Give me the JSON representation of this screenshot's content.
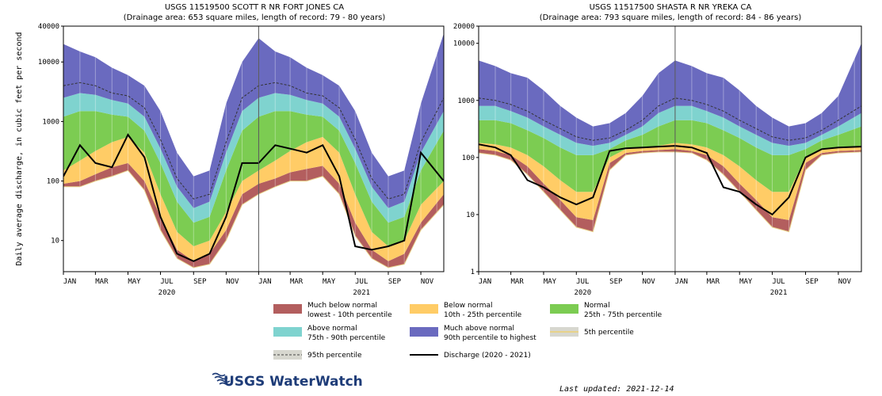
{
  "y_axis_label": "Daily average discharge, in cubic feet per second",
  "chart_data": [
    {
      "type": "area",
      "title": "USGS 11519500 SCOTT R NR FORT JONES CA",
      "subtitle": "(Drainage area: 653 square miles, length of record: 79 - 80 years)",
      "yscale": "log",
      "ylim": [
        3,
        40000
      ],
      "yticks": [
        10,
        100,
        1000,
        10000,
        40000
      ],
      "xlim": [
        "2020-01-01",
        "2021-12-14"
      ],
      "xticks": [
        "JAN",
        "MAR",
        "MAY",
        "JUL",
        "SEP",
        "NOV",
        "JAN",
        "MAR",
        "MAY",
        "JUL",
        "SEP",
        "NOV"
      ],
      "year_labels": [
        "2020",
        "2021"
      ],
      "x": [
        "2020-01-01",
        "2020-02-01",
        "2020-03-01",
        "2020-04-01",
        "2020-05-01",
        "2020-06-01",
        "2020-07-01",
        "2020-08-01",
        "2020-09-01",
        "2020-10-01",
        "2020-11-01",
        "2020-12-01",
        "2021-01-01",
        "2021-02-01",
        "2021-03-01",
        "2021-04-01",
        "2021-05-01",
        "2021-06-01",
        "2021-07-01",
        "2021-08-01",
        "2021-09-01",
        "2021-10-01",
        "2021-11-01",
        "2021-12-14"
      ],
      "bands": {
        "p05": [
          80,
          80,
          100,
          120,
          150,
          70,
          15,
          5,
          3.5,
          4,
          10,
          40,
          60,
          80,
          100,
          100,
          120,
          60,
          12,
          5,
          3.5,
          4,
          15,
          40
        ],
        "p10": [
          90,
          100,
          130,
          170,
          200,
          100,
          25,
          7,
          4.5,
          6,
          15,
          60,
          90,
          110,
          140,
          160,
          180,
          90,
          20,
          7,
          4.5,
          6,
          20,
          60
        ],
        "p25": [
          150,
          220,
          320,
          450,
          550,
          300,
          60,
          14,
          8,
          10,
          30,
          100,
          150,
          220,
          320,
          450,
          550,
          300,
          60,
          14,
          8,
          10,
          40,
          100
        ],
        "p75": [
          1200,
          1500,
          1500,
          1300,
          1200,
          700,
          200,
          45,
          20,
          25,
          150,
          700,
          1200,
          1500,
          1500,
          1300,
          1200,
          700,
          200,
          45,
          20,
          25,
          150,
          700
        ],
        "p90": [
          2500,
          3000,
          2800,
          2300,
          2000,
          1200,
          350,
          80,
          35,
          45,
          300,
          1500,
          2500,
          3000,
          2800,
          2300,
          2000,
          1200,
          350,
          80,
          35,
          45,
          300,
          1500
        ],
        "p95": [
          4000,
          4500,
          4000,
          3000,
          2700,
          1700,
          500,
          110,
          50,
          60,
          450,
          2500,
          4000,
          4500,
          4000,
          3000,
          2700,
          1700,
          500,
          110,
          50,
          60,
          450,
          2500
        ],
        "max": [
          20000,
          15000,
          12000,
          8000,
          6000,
          4000,
          1500,
          300,
          120,
          150,
          2000,
          10000,
          25000,
          15000,
          12000,
          8000,
          6000,
          4000,
          1500,
          300,
          120,
          150,
          2000,
          30000
        ]
      },
      "discharge": [
        120,
        400,
        200,
        170,
        600,
        250,
        25,
        6,
        4.5,
        6,
        25,
        200,
        200,
        400,
        350,
        300,
        400,
        120,
        8,
        7,
        8,
        10,
        300,
        100
      ]
    },
    {
      "type": "area",
      "title": "USGS 11517500 SHASTA R NR YREKA CA",
      "subtitle": "(Drainage area: 793 square miles, length of record: 84 - 86 years)",
      "yscale": "log",
      "ylim": [
        1,
        20000
      ],
      "yticks": [
        1,
        10,
        100,
        1000,
        10000,
        20000
      ],
      "xlim": [
        "2020-01-01",
        "2021-12-14"
      ],
      "xticks": [
        "JAN",
        "MAR",
        "MAY",
        "JUL",
        "SEP",
        "NOV",
        "JAN",
        "MAR",
        "MAY",
        "JUL",
        "SEP",
        "NOV"
      ],
      "year_labels": [
        "2020",
        "2021"
      ],
      "x": [
        "2020-01-01",
        "2020-02-01",
        "2020-03-01",
        "2020-04-01",
        "2020-05-01",
        "2020-06-01",
        "2020-07-01",
        "2020-08-01",
        "2020-09-01",
        "2020-10-01",
        "2020-11-01",
        "2020-12-01",
        "2021-01-01",
        "2021-02-01",
        "2021-03-01",
        "2021-04-01",
        "2021-05-01",
        "2021-06-01",
        "2021-07-01",
        "2021-08-01",
        "2021-09-01",
        "2021-10-01",
        "2021-11-01",
        "2021-12-14"
      ],
      "bands": {
        "p05": [
          120,
          110,
          90,
          50,
          25,
          12,
          6,
          5,
          60,
          110,
          120,
          125,
          125,
          120,
          90,
          50,
          25,
          12,
          6,
          5,
          60,
          110,
          120,
          125
        ],
        "p10": [
          140,
          130,
          110,
          70,
          35,
          18,
          9,
          8,
          80,
          120,
          130,
          135,
          140,
          130,
          110,
          70,
          35,
          18,
          9,
          8,
          80,
          120,
          130,
          135
        ],
        "p25": [
          180,
          170,
          150,
          110,
          70,
          40,
          25,
          25,
          100,
          140,
          150,
          160,
          180,
          170,
          150,
          110,
          70,
          40,
          25,
          25,
          100,
          140,
          150,
          160
        ],
        "p75": [
          450,
          450,
          400,
          300,
          220,
          150,
          110,
          110,
          140,
          200,
          250,
          350,
          450,
          450,
          400,
          300,
          220,
          150,
          110,
          110,
          140,
          200,
          250,
          350
        ],
        "p90": [
          800,
          800,
          650,
          500,
          350,
          250,
          180,
          160,
          180,
          250,
          350,
          600,
          800,
          800,
          650,
          500,
          350,
          250,
          180,
          160,
          180,
          250,
          350,
          600
        ],
        "p95": [
          1100,
          1000,
          850,
          650,
          450,
          320,
          230,
          200,
          220,
          300,
          450,
          800,
          1100,
          1000,
          850,
          650,
          450,
          320,
          230,
          200,
          220,
          300,
          450,
          800
        ],
        "max": [
          5000,
          4000,
          3000,
          2500,
          1500,
          800,
          500,
          350,
          400,
          600,
          1200,
          3000,
          5000,
          4000,
          3000,
          2500,
          1500,
          800,
          500,
          350,
          400,
          600,
          1200,
          10000
        ]
      },
      "discharge": [
        170,
        150,
        110,
        40,
        30,
        20,
        15,
        20,
        130,
        145,
        150,
        155,
        160,
        150,
        120,
        30,
        25,
        15,
        10,
        20,
        100,
        140,
        150,
        155
      ]
    }
  ],
  "legend": [
    {
      "label": "Much below normal",
      "sublabel": "lowest - 10th percentile",
      "color": "#b35e5e",
      "kind": "box"
    },
    {
      "label": "Below normal",
      "sublabel": "10th - 25th percentile",
      "color": "#ffcc66",
      "kind": "box"
    },
    {
      "label": "Normal",
      "sublabel": "25th - 75th percentile",
      "color": "#7ccc52",
      "kind": "box"
    },
    {
      "label": "Above normal",
      "sublabel": "75th - 90th percentile",
      "color": "#7fd3cf",
      "kind": "box"
    },
    {
      "label": "Much above normal",
      "sublabel": "90th percentile to highest",
      "color": "#6a6abf",
      "kind": "box"
    },
    {
      "label": "5th percentile",
      "sublabel": "",
      "color": "#e8d28a",
      "kind": "box-line"
    },
    {
      "label": "95th percentile",
      "sublabel": "",
      "color": "#444444",
      "kind": "dash"
    },
    {
      "label": "Discharge (2020 - 2021)",
      "sublabel": "",
      "color": "#000000",
      "kind": "line"
    }
  ],
  "colors": {
    "much_below": "#b35e5e",
    "below": "#ffcc66",
    "normal": "#7ccc52",
    "above": "#7fd3cf",
    "much_above": "#6a6abf",
    "p05_line": "#e8d28a",
    "discharge": "#000000"
  },
  "logo_text": "USGS WaterWatch",
  "last_updated": "Last updated: 2021-12-14"
}
